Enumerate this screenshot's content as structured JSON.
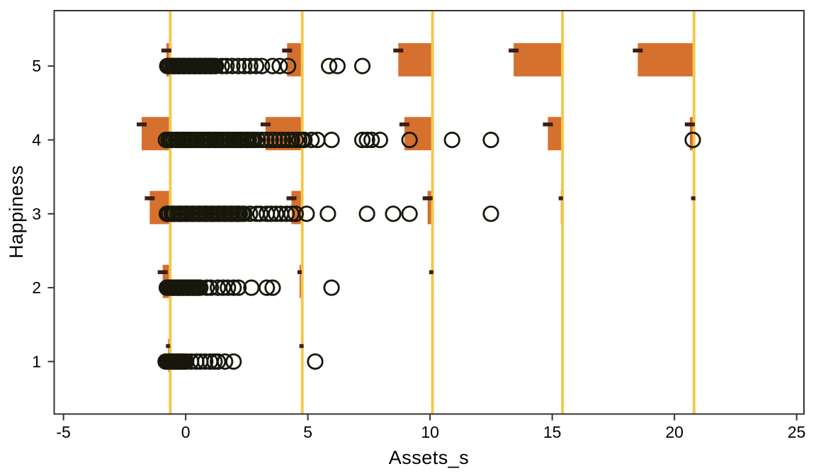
{
  "chart_data": {
    "type": "scatter",
    "title": "",
    "xlabel": "Assets_s",
    "ylabel": "Happiness",
    "xlim": [
      -5.38,
      25.3
    ],
    "ylim": [
      0.29,
      5.75
    ],
    "xticks": [
      -5,
      0,
      5,
      10,
      15,
      20,
      25
    ],
    "yticks": [
      1,
      2,
      3,
      4,
      5
    ],
    "grid": "off",
    "legend": "none",
    "marker": "open-circle",
    "knot_lines_x": [
      -0.63,
      4.77,
      10.1,
      15.42,
      20.8
    ],
    "bar_band": {
      "below": 0.14,
      "above": 0.31
    },
    "dash_y_offset": 0.21,
    "bars": [
      {
        "level": 5,
        "knot": -0.63,
        "width": 0.16
      },
      {
        "level": 4,
        "knot": -0.63,
        "width": 1.17
      },
      {
        "level": 3,
        "knot": -0.63,
        "width": 0.84
      },
      {
        "level": 2,
        "knot": -0.63,
        "width": 0.31
      },
      {
        "level": 1,
        "knot": -0.63,
        "width": 0.09
      },
      {
        "level": 5,
        "knot": 4.77,
        "width": 0.62
      },
      {
        "level": 4,
        "knot": 4.77,
        "width": 1.5
      },
      {
        "level": 3,
        "knot": 4.77,
        "width": 0.44
      },
      {
        "level": 2,
        "knot": 4.77,
        "width": 0.11
      },
      {
        "level": 1,
        "knot": 4.77,
        "width": 0.03
      },
      {
        "level": 5,
        "knot": 10.1,
        "width": 1.4
      },
      {
        "level": 4,
        "knot": 10.1,
        "width": 1.15
      },
      {
        "level": 3,
        "knot": 10.1,
        "width": 0.2
      },
      {
        "level": 2,
        "knot": 10.1,
        "width": 0.05
      },
      {
        "level": 5,
        "knot": 15.42,
        "width": 2.0
      },
      {
        "level": 4,
        "knot": 15.42,
        "width": 0.6
      },
      {
        "level": 3,
        "knot": 15.42,
        "width": 0.07
      },
      {
        "level": 5,
        "knot": 20.8,
        "width": 2.3
      },
      {
        "level": 4,
        "knot": 20.8,
        "width": 0.17
      },
      {
        "level": 3,
        "knot": 20.8,
        "width": 0.03
      }
    ],
    "scatter_rows": [
      {
        "level": 5,
        "dense": {
          "from": -0.78,
          "to": 1.15,
          "count": 40
        },
        "points": [
          1.24,
          1.48,
          1.67,
          1.91,
          2.16,
          2.4,
          2.64,
          2.88,
          3.12,
          3.56,
          3.85,
          4.19,
          5.87,
          6.21,
          7.23
        ]
      },
      {
        "level": 4,
        "dense": {
          "from": -0.78,
          "to": 2.85,
          "count": 62
        },
        "points": [
          2.95,
          3.13,
          3.3,
          3.48,
          3.65,
          3.83,
          4.0,
          4.18,
          4.35,
          4.5,
          4.65,
          4.77,
          4.86,
          5.15,
          5.39,
          5.97,
          7.23,
          7.42,
          7.61,
          7.95,
          9.16,
          10.9,
          12.49,
          20.75
        ]
      },
      {
        "level": 3,
        "dense": {
          "from": -0.78,
          "to": 2.3,
          "count": 52
        },
        "points": [
          2.4,
          2.63,
          2.9,
          3.06,
          3.32,
          3.5,
          3.7,
          3.9,
          4.13,
          4.33,
          4.5,
          4.95,
          5.82,
          7.42,
          8.49,
          9.16,
          12.49
        ]
      },
      {
        "level": 2,
        "dense": {
          "from": -0.78,
          "to": 0.55,
          "count": 30
        },
        "points": [
          0.6,
          0.86,
          1.03,
          1.32,
          1.53,
          1.73,
          1.96,
          2.16,
          2.69,
          3.32,
          3.56,
          5.97
        ]
      },
      {
        "level": 1,
        "dense": {
          "from": -0.8,
          "to": 0.0,
          "count": 20
        },
        "points": [
          0.02,
          0.22,
          0.43,
          0.6,
          0.8,
          1.0,
          1.18,
          1.32,
          1.61,
          1.96,
          5.3
        ]
      }
    ],
    "colors": {
      "bar_fill": "#D6702E",
      "knot_line": "#F2C84D",
      "dash_marker": "#3B1E15",
      "marker_stroke": "#17170B",
      "axis": "#333333",
      "background": "#FFFFFF"
    }
  }
}
